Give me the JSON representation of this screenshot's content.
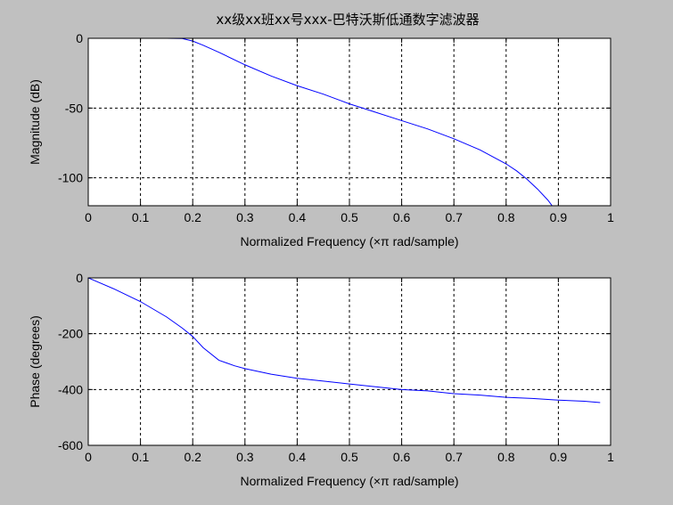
{
  "colors": {
    "background": "#c0c0c0",
    "axes": "#ffffff",
    "line": "#0000ff"
  },
  "chart_data": [
    {
      "type": "line",
      "title": "xx级xx班xx号xxx-巴特沃斯低通数字滤波器",
      "xlabel": "Normalized Frequency  (×π rad/sample)",
      "ylabel": "Magnitude (dB)",
      "xlim": [
        0,
        1
      ],
      "ylim": [
        -120,
        0
      ],
      "xticks": [
        "0",
        "0.1",
        "0.2",
        "0.3",
        "0.4",
        "0.5",
        "0.6",
        "0.7",
        "0.8",
        "0.9",
        "1"
      ],
      "yticks": [
        "0",
        "-50",
        "-100"
      ],
      "grid": true,
      "series": [
        {
          "x": [
            0,
            0.05,
            0.1,
            0.15,
            0.18,
            0.2,
            0.22,
            0.25,
            0.3,
            0.35,
            0.4,
            0.45,
            0.5,
            0.55,
            0.6,
            0.65,
            0.7,
            0.75,
            0.8,
            0.82,
            0.84,
            0.86,
            0.88,
            0.89
          ],
          "y": [
            0,
            0,
            0,
            0,
            -0.2,
            -2,
            -5,
            -10,
            -19,
            -27,
            -34,
            -40,
            -47,
            -53,
            -59,
            -65,
            -72,
            -80,
            -90,
            -95,
            -101,
            -108,
            -116,
            -121
          ]
        }
      ]
    },
    {
      "type": "line",
      "title": "",
      "xlabel": "Normalized Frequency  (×π rad/sample)",
      "ylabel": "Phase (degrees)",
      "xlim": [
        0,
        1
      ],
      "ylim": [
        -600,
        0
      ],
      "xticks": [
        "0",
        "0.1",
        "0.2",
        "0.3",
        "0.4",
        "0.5",
        "0.6",
        "0.7",
        "0.8",
        "0.9",
        "1"
      ],
      "yticks": [
        "0",
        "-200",
        "-400",
        "-600"
      ],
      "grid": true,
      "series": [
        {
          "x": [
            0,
            0.05,
            0.1,
            0.15,
            0.18,
            0.2,
            0.22,
            0.25,
            0.28,
            0.3,
            0.35,
            0.4,
            0.45,
            0.5,
            0.55,
            0.6,
            0.65,
            0.7,
            0.75,
            0.8,
            0.85,
            0.9,
            0.95,
            0.98
          ],
          "y": [
            0,
            -40,
            -85,
            -140,
            -180,
            -210,
            -250,
            -295,
            -315,
            -325,
            -345,
            -360,
            -370,
            -380,
            -390,
            -400,
            -405,
            -415,
            -420,
            -428,
            -432,
            -438,
            -442,
            -447
          ]
        }
      ]
    }
  ]
}
